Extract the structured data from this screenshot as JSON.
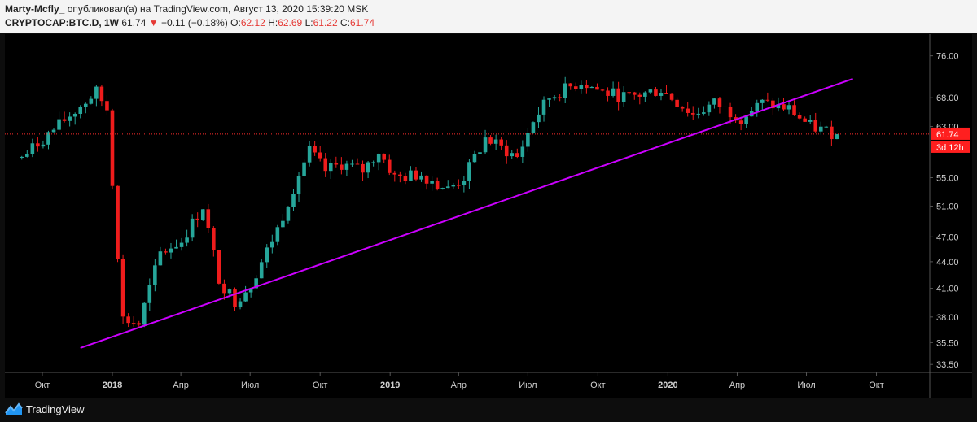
{
  "header": {
    "author": "Marty-Mcfly_",
    "published_text": "опубликовал(а) на TradingView.com, Август 13, 2020 15:39:20 MSK",
    "symbol": "CRYPTOCAP:BTC.D, 1W",
    "last": "61.74",
    "change_arrow": "▼",
    "change": "−0.11 (−0.18%)",
    "o_label": "O:",
    "o_value": "62.12",
    "h_label": "H:",
    "h_value": "62.69",
    "l_label": "L:",
    "l_value": "61.22",
    "c_label": "C:",
    "c_value": "61.74"
  },
  "price_axis": {
    "ticks": [
      "76.00",
      "68.00",
      "63.00",
      "55.00",
      "51.00",
      "47.00",
      "44.00",
      "41.00",
      "38.00",
      "35.50",
      "33.50"
    ],
    "last_price_label": "61.74",
    "countdown_label": "3d 12h"
  },
  "time_axis": {
    "ticks": [
      {
        "label": "Окт",
        "bold": false
      },
      {
        "label": "2018",
        "bold": true
      },
      {
        "label": "Апр",
        "bold": false
      },
      {
        "label": "Июл",
        "bold": false
      },
      {
        "label": "Окт",
        "bold": false
      },
      {
        "label": "2019",
        "bold": true
      },
      {
        "label": "Апр",
        "bold": false
      },
      {
        "label": "Июл",
        "bold": false
      },
      {
        "label": "Окт",
        "bold": false
      },
      {
        "label": "2020",
        "bold": true
      },
      {
        "label": "Апр",
        "bold": false
      },
      {
        "label": "Июл",
        "bold": false
      },
      {
        "label": "Окт",
        "bold": false
      }
    ]
  },
  "footer": {
    "brand": "TradingView"
  },
  "colors": {
    "up": "#26a69a",
    "down": "#ef1c1c",
    "trendline": "#cc00ff",
    "price_line": "#ff2d2d"
  },
  "chart_data": {
    "type": "candlestick",
    "scale": "log",
    "ylim": [
      32.8,
      80.5
    ],
    "timeframe": "1W",
    "last_price": 61.74,
    "trendline": {
      "from": {
        "date": "2017-11-20",
        "price": 35.0
      },
      "to": {
        "date": "2020-08-31",
        "price": 71.5
      }
    },
    "anchors": [
      {
        "date": "2017-09-04",
        "price": 58.0
      },
      {
        "date": "2017-12-11",
        "price": 69.0
      },
      {
        "date": "2017-12-25",
        "price": 66.0
      },
      {
        "date": "2018-01-08",
        "price": 45.0
      },
      {
        "date": "2018-01-15",
        "price": 37.8
      },
      {
        "date": "2018-02-05",
        "price": 37.3
      },
      {
        "date": "2018-03-05",
        "price": 45.0
      },
      {
        "date": "2018-04-02",
        "price": 46.5
      },
      {
        "date": "2018-04-30",
        "price": 51.0
      },
      {
        "date": "2018-05-21",
        "price": 42.0
      },
      {
        "date": "2018-06-11",
        "price": 39.6
      },
      {
        "date": "2018-07-02",
        "price": 41.5
      },
      {
        "date": "2018-08-06",
        "price": 48.0
      },
      {
        "date": "2018-09-03",
        "price": 55.5
      },
      {
        "date": "2018-09-17",
        "price": 59.0
      },
      {
        "date": "2018-10-08",
        "price": 56.0
      },
      {
        "date": "2018-10-29",
        "price": 57.0
      },
      {
        "date": "2018-11-26",
        "price": 56.0
      },
      {
        "date": "2018-12-17",
        "price": 59.0
      },
      {
        "date": "2019-01-07",
        "price": 55.0
      },
      {
        "date": "2019-02-11",
        "price": 55.5
      },
      {
        "date": "2019-03-18",
        "price": 53.3
      },
      {
        "date": "2019-04-08",
        "price": 55.0
      },
      {
        "date": "2019-05-06",
        "price": 61.0
      },
      {
        "date": "2019-06-17",
        "price": 58.0
      },
      {
        "date": "2019-07-08",
        "price": 64.0
      },
      {
        "date": "2019-07-29",
        "price": 68.0
      },
      {
        "date": "2019-09-09",
        "price": 71.0
      },
      {
        "date": "2019-10-07",
        "price": 69.0
      },
      {
        "date": "2019-11-11",
        "price": 68.0
      },
      {
        "date": "2019-12-23",
        "price": 69.5
      },
      {
        "date": "2020-02-03",
        "price": 65.0
      },
      {
        "date": "2020-03-02",
        "price": 67.0
      },
      {
        "date": "2020-04-06",
        "price": 64.5
      },
      {
        "date": "2020-05-04",
        "price": 67.0
      },
      {
        "date": "2020-06-08",
        "price": 66.0
      },
      {
        "date": "2020-07-06",
        "price": 63.0
      },
      {
        "date": "2020-08-10",
        "price": 61.74
      }
    ]
  }
}
